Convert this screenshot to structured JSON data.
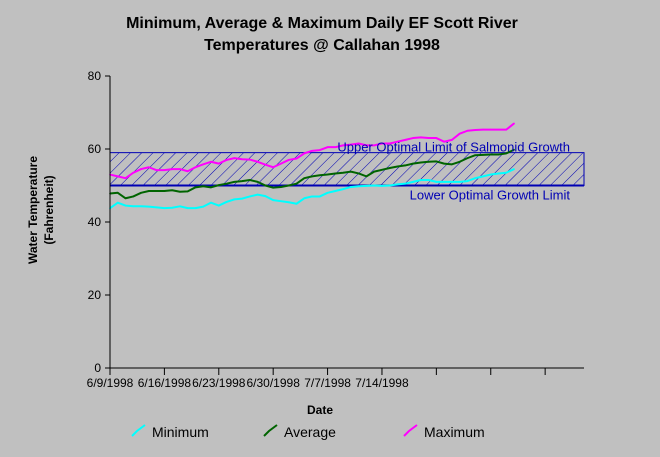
{
  "chart_data": {
    "type": "line",
    "title_line1": "Minimum, Average & Maximum Daily  EF Scott River",
    "title_line2": "Temperatures @ Callahan 1998",
    "xlabel": "Date",
    "ylabel_line1": "Water Temperature",
    "ylabel_line2": "(Fahrenheit)",
    "ylim": [
      0,
      80
    ],
    "y_ticks": [
      0,
      20,
      40,
      60,
      80
    ],
    "xlim": [
      "6/9/1998",
      "8/9/1998"
    ],
    "x_tick_labels": [
      "6/9/1998",
      "6/16/1998",
      "6/23/1998",
      "6/30/1998",
      "7/7/1998",
      "7/14/1998"
    ],
    "x_tick_dates": [
      "1998-06-09",
      "1998-06-16",
      "1998-06-23",
      "1998-06-30",
      "1998-07-07",
      "1998-07-14",
      "1998-07-21",
      "1998-07-28",
      "1998-08-04"
    ],
    "grid": false,
    "legend_position": "bottom",
    "optimal_band": {
      "upper": 59,
      "lower": 50,
      "upper_label": "Upper Optimal Limit of Salmonid Growth",
      "lower_label": "Lower Optimal Growth Limit",
      "color": "#0000b4"
    },
    "start_date": "1998-06-09",
    "series": [
      {
        "name": "Minimum",
        "color": "#00ffff",
        "values": [
          43.8,
          45.3,
          44.5,
          44.3,
          44.3,
          44.2,
          44.0,
          43.8,
          43.9,
          44.3,
          43.8,
          43.8,
          44.2,
          45.3,
          44.5,
          45.5,
          46.2,
          46.4,
          47.0,
          47.5,
          47.1,
          46.0,
          45.7,
          45.4,
          45.0,
          46.5,
          47.0,
          47.0,
          48.0,
          48.5,
          49.0,
          49.6,
          49.8,
          49.9,
          50.0,
          49.9,
          50.0,
          50.3,
          50.5,
          51.0,
          51.5,
          51.5,
          51.0,
          51.0,
          51.0,
          51.0,
          51.2,
          52.0,
          52.5,
          53.0,
          53.3,
          53.5,
          54.5
        ]
      },
      {
        "name": "Average",
        "color": "#006400",
        "values": [
          47.8,
          48.0,
          46.5,
          47.0,
          48.0,
          48.5,
          48.5,
          48.5,
          48.7,
          48.3,
          48.4,
          49.5,
          49.8,
          49.5,
          50.1,
          50.5,
          51.0,
          51.2,
          51.5,
          51.0,
          50.0,
          49.4,
          49.6,
          50.0,
          50.5,
          52.0,
          52.5,
          52.8,
          53.0,
          53.3,
          53.5,
          53.8,
          53.3,
          52.5,
          53.8,
          54.3,
          54.8,
          55.2,
          55.5,
          56.0,
          56.3,
          56.5,
          56.6,
          56.0,
          55.8,
          56.5,
          57.5,
          58.3,
          58.4,
          58.5,
          58.5,
          58.8,
          59.8
        ]
      },
      {
        "name": "Maximum",
        "color": "#ff00ff",
        "values": [
          53.0,
          52.5,
          52.0,
          53.5,
          54.5,
          55.0,
          54.2,
          54.2,
          54.5,
          54.5,
          53.9,
          55.0,
          55.8,
          56.5,
          56.0,
          57.0,
          57.5,
          57.2,
          57.1,
          56.5,
          55.7,
          55.0,
          56.0,
          57.0,
          57.4,
          58.8,
          59.5,
          59.7,
          60.5,
          60.5,
          61.0,
          61.2,
          61.5,
          61.0,
          61.0,
          61.5,
          61.5,
          62.0,
          62.5,
          63.0,
          63.2,
          63.0,
          63.0,
          62.0,
          62.5,
          64.2,
          65.0,
          65.2,
          65.3,
          65.3,
          65.3,
          65.3,
          67.0
        ]
      }
    ]
  }
}
